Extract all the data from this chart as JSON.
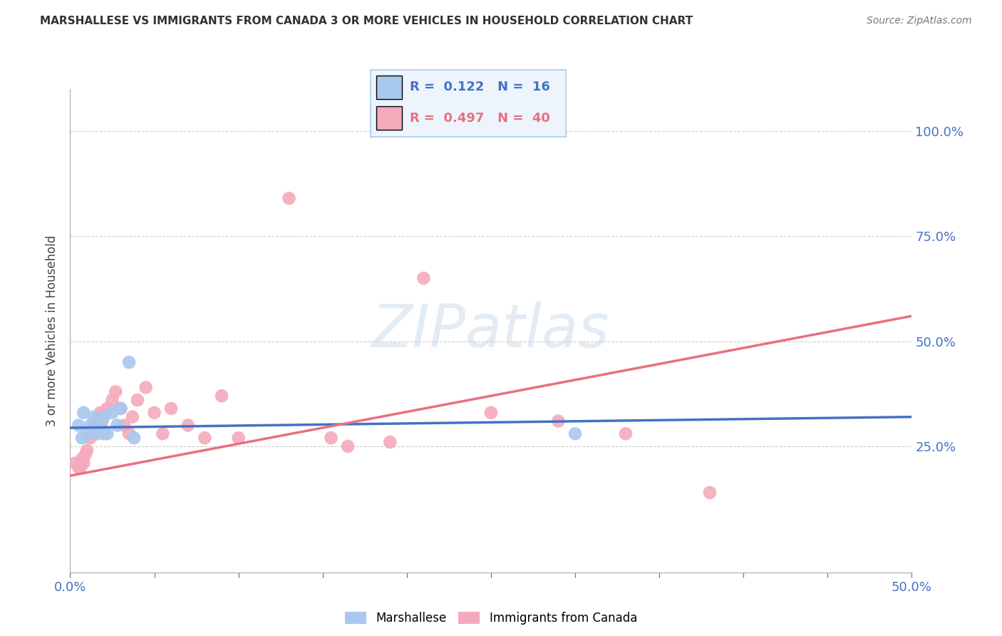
{
  "title": "MARSHALLESE VS IMMIGRANTS FROM CANADA 3 OR MORE VEHICLES IN HOUSEHOLD CORRELATION CHART",
  "source": "Source: ZipAtlas.com",
  "ylabel": "3 or more Vehicles in Household",
  "xlim": [
    0.0,
    0.5
  ],
  "ylim": [
    -0.05,
    1.1
  ],
  "r_blue": 0.122,
  "n_blue": 16,
  "r_pink": 0.497,
  "n_pink": 40,
  "blue_color": "#A8C8EE",
  "pink_color": "#F4AABB",
  "blue_line_color": "#4472C4",
  "pink_line_color": "#E87080",
  "legend_box_color": "#EEF4FC",
  "legend_border_color": "#AACCEE",
  "legend_text_blue": "#4472C4",
  "legend_text_pink": "#E87080",
  "tick_color": "#4472C4",
  "grid_color": "#CCCCCC",
  "watermark_text": "ZIPatlas",
  "watermark_color": "#C8D8E8",
  "blue_scatter_x": [
    0.005,
    0.007,
    0.008,
    0.01,
    0.012,
    0.014,
    0.016,
    0.018,
    0.02,
    0.022,
    0.025,
    0.028,
    0.03,
    0.035,
    0.038,
    0.3
  ],
  "blue_scatter_y": [
    0.3,
    0.27,
    0.33,
    0.28,
    0.3,
    0.32,
    0.28,
    0.3,
    0.32,
    0.28,
    0.33,
    0.3,
    0.34,
    0.45,
    0.27,
    0.28
  ],
  "pink_scatter_x": [
    0.003,
    0.005,
    0.006,
    0.007,
    0.008,
    0.009,
    0.01,
    0.012,
    0.013,
    0.014,
    0.015,
    0.017,
    0.018,
    0.019,
    0.02,
    0.022,
    0.025,
    0.027,
    0.03,
    0.032,
    0.035,
    0.037,
    0.04,
    0.045,
    0.05,
    0.055,
    0.06,
    0.07,
    0.08,
    0.09,
    0.1,
    0.13,
    0.155,
    0.165,
    0.19,
    0.21,
    0.25,
    0.29,
    0.33,
    0.38
  ],
  "pink_scatter_y": [
    0.21,
    0.2,
    0.2,
    0.22,
    0.21,
    0.23,
    0.24,
    0.27,
    0.28,
    0.3,
    0.29,
    0.32,
    0.33,
    0.31,
    0.28,
    0.34,
    0.36,
    0.38,
    0.34,
    0.3,
    0.28,
    0.32,
    0.36,
    0.39,
    0.33,
    0.28,
    0.34,
    0.3,
    0.27,
    0.37,
    0.27,
    0.84,
    0.27,
    0.25,
    0.26,
    0.65,
    0.33,
    0.31,
    0.28,
    0.14
  ],
  "blue_trend_x": [
    0.0,
    0.5
  ],
  "blue_trend_y": [
    0.294,
    0.32
  ],
  "pink_trend_x": [
    0.0,
    0.5
  ],
  "pink_trend_y": [
    0.18,
    0.56
  ]
}
